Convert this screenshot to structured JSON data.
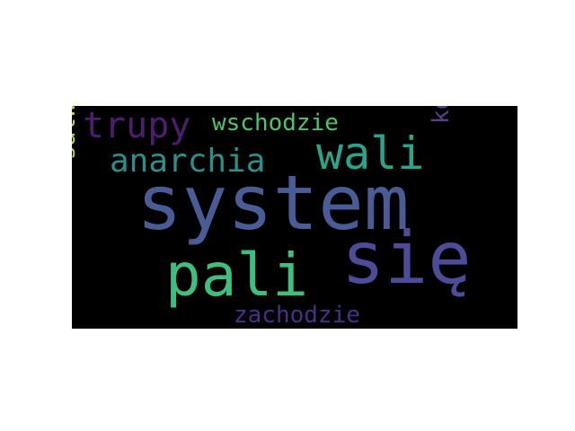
{
  "wordcloud": {
    "background": "#000000",
    "words": [
      {
        "key": "system",
        "text": "system",
        "color": "#4a5c96"
      },
      {
        "key": "pali",
        "text": "pali",
        "color": "#3fbf7f"
      },
      {
        "key": "sie",
        "text": "się",
        "color": "#4c4c99"
      },
      {
        "key": "wali",
        "text": "wali",
        "color": "#2aa58a"
      },
      {
        "key": "anarchia",
        "text": "anarchia",
        "color": "#2b8f8c"
      },
      {
        "key": "trupy",
        "text": "trupy",
        "color": "#4b1e6e"
      },
      {
        "key": "wschodzie",
        "text": "wschodzie",
        "color": "#4fc46a"
      },
      {
        "key": "salwadorze",
        "text": "salwadorze",
        "color": "#b5de2b"
      },
      {
        "key": "kolorze",
        "text": "kolorze",
        "color": "#5a3e8c"
      },
      {
        "key": "zachodzie",
        "text": "zachodzie",
        "color": "#4a2f85"
      }
    ]
  }
}
